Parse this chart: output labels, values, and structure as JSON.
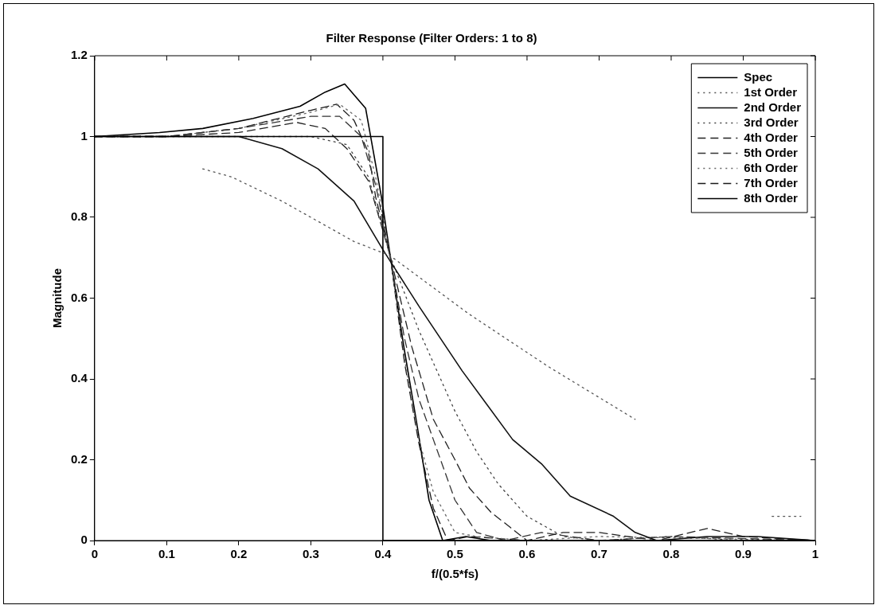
{
  "chart_data": {
    "type": "line",
    "title": "Filter Response (Filter Orders: 1 to 8)",
    "xlabel": "f/(0.5*fs)",
    "ylabel": "Magnitude",
    "xlim": [
      0,
      1
    ],
    "xticks": [
      0,
      0.1,
      0.2,
      0.3,
      0.4,
      0.5,
      0.6,
      0.7,
      0.8,
      0.9,
      1
    ],
    "ylim": [
      0,
      1.2
    ],
    "yticks": [
      0,
      0.2,
      0.4,
      0.6,
      0.8,
      1,
      1.2
    ],
    "grid": false,
    "legend": "top right",
    "marker": "none",
    "series": [
      {
        "name": "Spec",
        "color": "#000000",
        "line_style": "solid",
        "x": [
          0,
          0.4,
          0.4,
          1
        ],
        "values": [
          1,
          1,
          0,
          0
        ]
      },
      {
        "name": "1st Order",
        "color": "#555555",
        "line_style": "dotted",
        "x": [
          0.15,
          0.19,
          0.26,
          0.32,
          0.36,
          0.41,
          0.52,
          0.63,
          0.75,
          0.85,
          0.94,
          0.98
        ],
        "values": [
          0.92,
          0.9,
          0.84,
          0.78,
          0.74,
          0.705,
          0.56,
          0.43,
          0.3,
          null,
          0.06,
          0.06
        ]
      },
      {
        "name": "2nd Order",
        "color": "#111111",
        "line_style": "solid",
        "x": [
          0,
          0.1,
          0.2,
          0.26,
          0.31,
          0.36,
          0.4,
          0.45,
          0.51,
          0.58,
          0.62,
          0.66,
          0.72,
          0.75,
          0.78,
          0.85,
          0.92,
          1
        ],
        "values": [
          1,
          1,
          1,
          0.97,
          0.92,
          0.84,
          0.72,
          0.58,
          0.42,
          0.25,
          0.19,
          0.11,
          0.06,
          0.02,
          0,
          0.01,
          0.01,
          0
        ]
      },
      {
        "name": "3rd Order",
        "color": "#444444",
        "line_style": "dotted",
        "x": [
          0,
          0.1,
          0.2,
          0.3,
          0.35,
          0.38,
          0.41,
          0.45,
          0.5,
          0.53,
          0.56,
          0.6,
          0.65,
          0.7,
          0.8,
          0.9,
          1
        ],
        "values": [
          1,
          1,
          1,
          1,
          0.98,
          0.9,
          0.705,
          0.52,
          0.32,
          0.22,
          0.14,
          0.06,
          0.01,
          0,
          0.01,
          0,
          0
        ]
      },
      {
        "name": "4th Order",
        "color": "#222222",
        "line_style": "dashed",
        "x": [
          0,
          0.1,
          0.2,
          0.28,
          0.32,
          0.35,
          0.38,
          0.41,
          0.44,
          0.47,
          0.5,
          0.52,
          0.55,
          0.6,
          0.65,
          0.7,
          0.78,
          0.85,
          0.9,
          1
        ],
        "values": [
          1,
          1,
          1.01,
          1.035,
          1.02,
          0.97,
          0.89,
          0.705,
          0.48,
          0.3,
          0.2,
          0.13,
          0.07,
          0,
          0.02,
          0.02,
          0,
          0.03,
          0.01,
          0
        ]
      },
      {
        "name": "5th Order",
        "color": "#333333",
        "line_style": "dashed",
        "x": [
          0,
          0.1,
          0.2,
          0.3,
          0.34,
          0.37,
          0.39,
          0.41,
          0.43,
          0.45,
          0.47,
          0.5,
          0.53,
          0.57,
          0.62,
          0.7,
          0.8,
          1
        ],
        "values": [
          1,
          1,
          1.02,
          1.05,
          1.05,
          1,
          0.88,
          0.705,
          0.5,
          0.35,
          0.25,
          0.1,
          0.02,
          0,
          0.02,
          0,
          0.01,
          0
        ]
      },
      {
        "name": "6th Order",
        "color": "#666666",
        "line_style": "dotted",
        "x": [
          0,
          0.1,
          0.2,
          0.3,
          0.34,
          0.37,
          0.39,
          0.41,
          0.43,
          0.45,
          0.47,
          0.5,
          0.53,
          0.6,
          0.7,
          1
        ],
        "values": [
          1,
          1,
          1.02,
          1.06,
          1.08,
          1.04,
          0.9,
          0.705,
          0.45,
          0.25,
          0.12,
          0.02,
          0.01,
          0,
          0.01,
          0
        ]
      },
      {
        "name": "7th Order",
        "color": "#1a1a1a",
        "line_style": "dashed",
        "x": [
          0,
          0.1,
          0.2,
          0.3,
          0.336,
          0.36,
          0.38,
          0.39,
          0.41,
          0.43,
          0.45,
          0.47,
          0.49,
          0.52,
          0.6,
          1
        ],
        "values": [
          1,
          1,
          1.02,
          1.065,
          1.08,
          1.04,
          0.96,
          0.85,
          0.705,
          0.44,
          0.24,
          0.08,
          0,
          0.01,
          0,
          0
        ]
      },
      {
        "name": "8th Order",
        "color": "#000000",
        "line_style": "solid",
        "x": [
          0,
          0.09,
          0.15,
          0.22,
          0.285,
          0.32,
          0.347,
          0.376,
          0.398,
          0.411,
          0.429,
          0.447,
          0.464,
          0.483,
          0.515,
          0.55,
          0.6,
          1
        ],
        "values": [
          1,
          1.01,
          1.02,
          1.045,
          1.075,
          1.11,
          1.13,
          1.07,
          0.85,
          0.695,
          0.48,
          0.29,
          0.1,
          0,
          0.01,
          0,
          0,
          0
        ]
      }
    ]
  }
}
